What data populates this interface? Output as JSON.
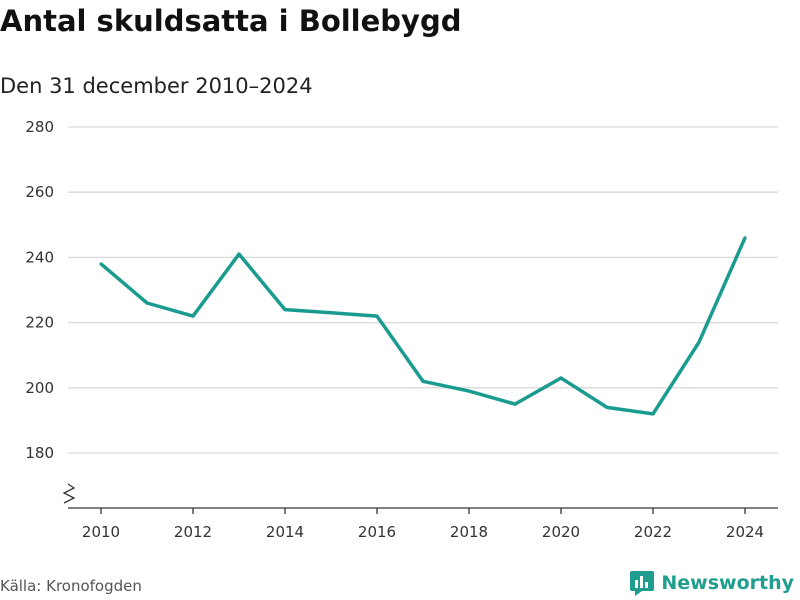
{
  "title": "Antal skuldsatta i Bollebygd",
  "subtitle": "Den 31 december 2010–2024",
  "source": "Källa: Kronofogden",
  "brand": {
    "name": "Newsworthy",
    "logo_icon": "bar-chart-icon",
    "color": "#1f9e8f"
  },
  "colors": {
    "line": "#1a9b8f",
    "grid": "#d9d9d9",
    "axis": "#333333"
  },
  "chart_data": {
    "type": "line",
    "title": "Antal skuldsatta i Bollebygd",
    "subtitle": "Den 31 december 2010–2024",
    "xlabel": "",
    "ylabel": "",
    "x": [
      2010,
      2011,
      2012,
      2013,
      2014,
      2015,
      2016,
      2017,
      2018,
      2019,
      2020,
      2021,
      2022,
      2023,
      2024
    ],
    "series": [
      {
        "name": "Antal skuldsatta",
        "values": [
          238,
          226,
          222,
          241,
          224,
          223,
          222,
          202,
          199,
          195,
          203,
          194,
          192,
          214,
          246
        ]
      }
    ],
    "ylim": [
      168,
      280
    ],
    "yticks": [
      180,
      200,
      220,
      240,
      260,
      280
    ],
    "xticks": [
      2010,
      2012,
      2014,
      2016,
      2018,
      2020,
      2022,
      2024
    ],
    "grid": true,
    "axis_break": true
  }
}
